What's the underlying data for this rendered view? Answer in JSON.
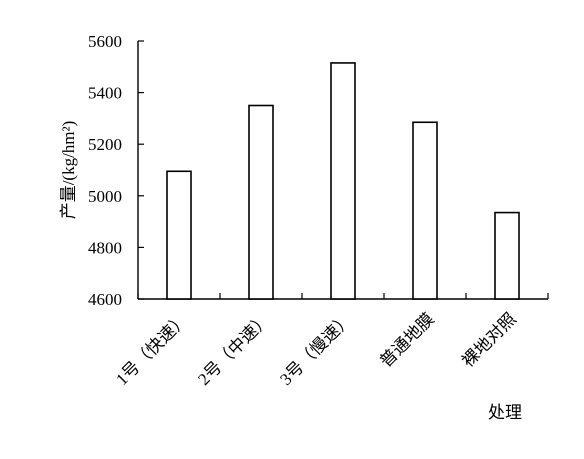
{
  "chart_data": {
    "type": "bar",
    "categories": [
      "1号（快速）",
      "2号（中速）",
      "3号（慢速）",
      "普通地膜",
      "裸地对照"
    ],
    "values": [
      5095,
      5350,
      5515,
      5285,
      4935
    ],
    "ylabel": "产量/(kg/hm²)",
    "xlabel": "处理",
    "ylim": [
      4600,
      5600
    ],
    "yticks": [
      4600,
      4800,
      5000,
      5200,
      5400,
      5600
    ],
    "grid": false,
    "legend": "none",
    "bar_fill": "#ffffff",
    "bar_stroke": "#000000"
  }
}
